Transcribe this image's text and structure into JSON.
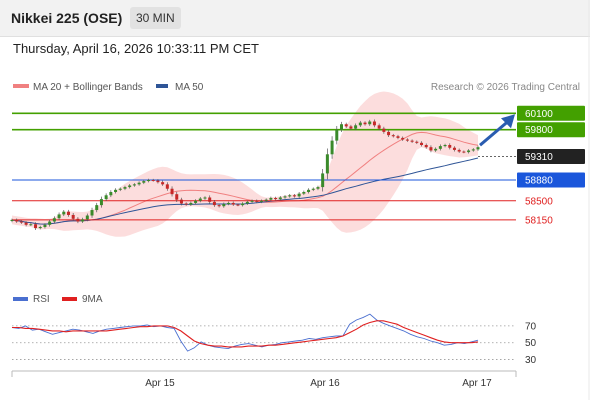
{
  "header": {
    "title": "Nikkei 225 (OSE)",
    "timeframe": "30 MIN",
    "datetime": "Thursday, April 16, 2026 10:33:11 PM CET"
  },
  "copyright": "Research © 2026 Trading Central",
  "legend": [
    {
      "label": "MA 20 + Bollinger Bands",
      "color": "#f08080"
    },
    {
      "label": "MA 50",
      "color": "#2f5597"
    }
  ],
  "rsi_legend": [
    {
      "label": "RSI",
      "color": "#4a6fd0"
    },
    {
      "label": "9MA",
      "color": "#e02020"
    }
  ],
  "chart_data": [
    {
      "type": "candlestick",
      "title": "Nikkei 225 (OSE)",
      "interval": "30 MIN",
      "ylim": [
        57050,
        60380
      ],
      "x_tick_labels": [
        "Apr 15",
        "Apr 16",
        "Apr 17"
      ],
      "closes": [
        58150,
        58120,
        58100,
        58060,
        58070,
        58000,
        58020,
        58060,
        58120,
        58180,
        58250,
        58300,
        58240,
        58170,
        58120,
        58160,
        58230,
        58330,
        58420,
        58530,
        58600,
        58660,
        58700,
        58720,
        58750,
        58780,
        58800,
        58830,
        58860,
        58880,
        58870,
        58840,
        58800,
        58720,
        58620,
        58520,
        58450,
        58430,
        58460,
        58500,
        58540,
        58560,
        58480,
        58420,
        58400,
        58440,
        58460,
        58430,
        58420,
        58450,
        58480,
        58500,
        58480,
        58500,
        58520,
        58550,
        58530,
        58560,
        58580,
        58600,
        58580,
        58630,
        58660,
        58700,
        58720,
        58750,
        59000,
        59350,
        59600,
        59800,
        59900,
        59860,
        59820,
        59880,
        59930,
        59900,
        59950,
        59880,
        59820,
        59760,
        59700,
        59680,
        59650,
        59620,
        59600,
        59580,
        59560,
        59520,
        59480,
        59420,
        59450,
        59500,
        59520,
        59470,
        59430,
        59400,
        59390,
        59420,
        59440,
        59480
      ],
      "levels": [
        {
          "value": 60100,
          "label": "60100",
          "color": "#43a000"
        },
        {
          "value": 59800,
          "label": "59800",
          "color": "#43a000"
        },
        {
          "value": 59310,
          "label": "59310",
          "color": "#222222"
        },
        {
          "value": 58880,
          "label": "58880",
          "color": "#1a56db"
        },
        {
          "value": 58500,
          "label": "58500",
          "color": "#e02020"
        },
        {
          "value": 58150,
          "label": "58150",
          "color": "#e02020"
        }
      ],
      "series": [
        {
          "name": "MA 20 + Bollinger Bands"
        },
        {
          "name": "MA 50"
        }
      ]
    },
    {
      "type": "line",
      "ylim": [
        20,
        90
      ],
      "y_ticks": [
        30,
        50,
        70
      ],
      "series": [
        {
          "name": "RSI",
          "values": [
            68,
            67,
            70,
            65,
            66,
            63,
            60,
            62,
            64,
            66,
            65,
            63,
            61,
            64,
            66,
            67,
            68,
            69,
            70,
            70,
            71,
            69,
            70,
            68,
            67,
            52,
            40,
            44,
            51,
            47,
            45,
            44,
            43,
            46,
            48,
            49,
            47,
            45,
            47,
            48,
            50,
            51,
            52,
            53,
            55,
            54,
            56,
            57,
            58,
            58,
            72,
            77,
            80,
            84,
            77,
            73,
            70,
            67,
            64,
            60,
            57,
            55,
            52,
            50,
            47,
            48,
            50,
            49,
            51,
            53
          ]
        },
        {
          "name": "9MA",
          "values": [
            68,
            68,
            67,
            67,
            66,
            65,
            64,
            64,
            63,
            64,
            64,
            64,
            64,
            64,
            64,
            65,
            66,
            67,
            68,
            69,
            69,
            70,
            70,
            70,
            68,
            64,
            58,
            52,
            49,
            47,
            46,
            46,
            45,
            45,
            45,
            46,
            46,
            46,
            47,
            47,
            48,
            49,
            50,
            51,
            52,
            53,
            54,
            55,
            56,
            58,
            62,
            66,
            71,
            74,
            76,
            76,
            74,
            72,
            68,
            65,
            62,
            59,
            56,
            53,
            51,
            50,
            50,
            50,
            50,
            51
          ]
        }
      ]
    }
  ]
}
